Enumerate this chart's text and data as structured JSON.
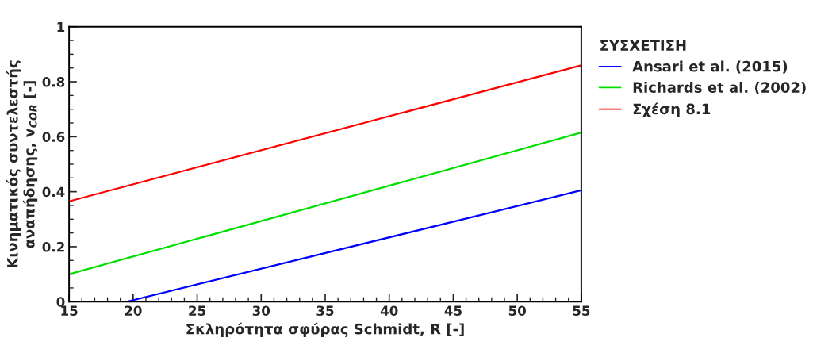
{
  "chart_data": {
    "type": "line",
    "xlabel": "Σκληρότητα σφύρας Schmidt, R [-]",
    "ylabel": "Κινηματικός συντελεστής\nαναπήδησης, v$_{COR}$ [-]",
    "legend_title": "ΣΥΣΧΕΤΙΣΗ",
    "series": [
      {
        "name": "Ansari et al. (2015)",
        "color": "#0000ff",
        "x": [
          19.5,
          55
        ],
        "values": [
          0,
          0.405
        ]
      },
      {
        "name": "Richards et al. (2002)",
        "color": "#00e000",
        "x": [
          15,
          55
        ],
        "values": [
          0.1,
          0.615
        ]
      },
      {
        "name": "Σχέση 8.1",
        "color": "#ff0000",
        "x": [
          15,
          55
        ],
        "values": [
          0.365,
          0.86
        ]
      }
    ],
    "xlim": [
      15,
      55
    ],
    "xticks": [
      15,
      20,
      25,
      30,
      35,
      40,
      45,
      50,
      55
    ],
    "ylim": [
      0,
      1
    ],
    "yticks": [
      0,
      0.2,
      0.4,
      0.6,
      0.8,
      1
    ],
    "grid": false,
    "legend": "right",
    "marker": "none",
    "line_style": "solid"
  }
}
